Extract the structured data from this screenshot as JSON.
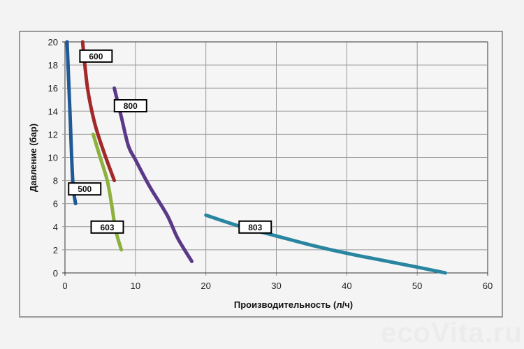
{
  "chart_data": {
    "type": "line",
    "title": "",
    "xlabel": "Производительность (л/ч)",
    "ylabel": "Давление (бар)",
    "xlim": [
      0,
      60
    ],
    "ylim": [
      0,
      20
    ],
    "xticks": [
      0,
      10,
      20,
      30,
      40,
      50,
      60
    ],
    "yticks": [
      0,
      2,
      4,
      6,
      8,
      10,
      12,
      14,
      16,
      18,
      20
    ],
    "grid": true,
    "legend": "none (inline boxed labels)",
    "series": [
      {
        "name": "500",
        "color": "#1f5a96",
        "label_at": [
          2.8,
          7.3
        ],
        "points": [
          [
            0.3,
            20
          ],
          [
            0.7,
            14
          ],
          [
            1.1,
            8
          ],
          [
            1.5,
            6
          ]
        ]
      },
      {
        "name": "600",
        "color": "#a3282a",
        "label_at": [
          4.4,
          18.8
        ],
        "points": [
          [
            2.5,
            20
          ],
          [
            3.2,
            16
          ],
          [
            4.2,
            13
          ],
          [
            5.5,
            10.5
          ],
          [
            7,
            8
          ]
        ]
      },
      {
        "name": "800",
        "color": "#5a3a88",
        "label_at": [
          9.3,
          14.5
        ],
        "points": [
          [
            7,
            16
          ],
          [
            8,
            13.5
          ],
          [
            9,
            11
          ],
          [
            10,
            9.8
          ],
          [
            12,
            7.5
          ],
          [
            14.5,
            5
          ],
          [
            16,
            3
          ],
          [
            18,
            1
          ]
        ]
      },
      {
        "name": "603",
        "color": "#8cb13e",
        "label_at": [
          6,
          4
        ],
        "points": [
          [
            4,
            12
          ],
          [
            5,
            10
          ],
          [
            6,
            8
          ],
          [
            6.6,
            6
          ],
          [
            7.1,
            4
          ],
          [
            7.5,
            3
          ],
          [
            8,
            2
          ]
        ]
      },
      {
        "name": "803",
        "color": "#2a86a0",
        "label_at": [
          27,
          4
        ],
        "points": [
          [
            20,
            5
          ],
          [
            25,
            4
          ],
          [
            30,
            3.2
          ],
          [
            35,
            2.4
          ],
          [
            40,
            1.7
          ],
          [
            45,
            1.1
          ],
          [
            50,
            0.5
          ],
          [
            54,
            0
          ]
        ]
      }
    ]
  },
  "watermark": "ecoVita.ru"
}
